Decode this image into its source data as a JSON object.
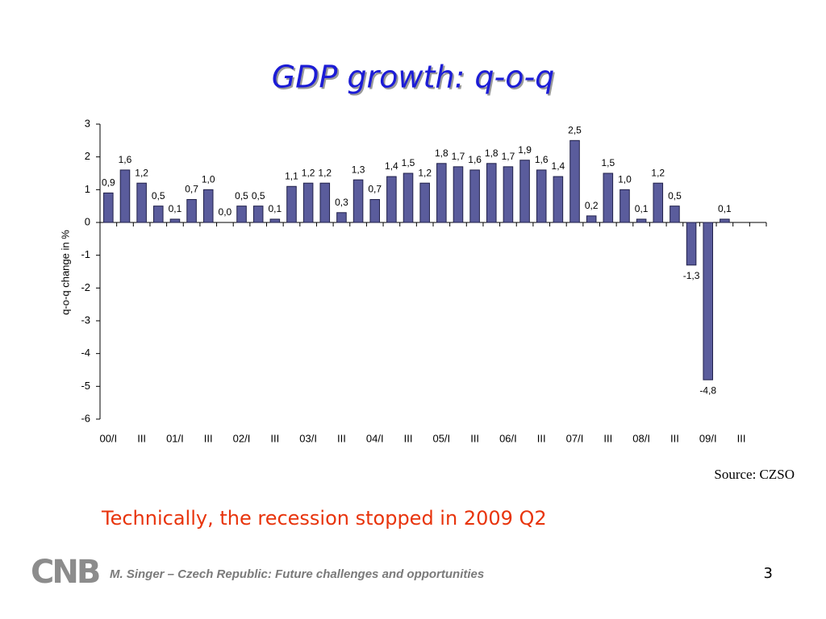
{
  "chart_data": {
    "type": "bar",
    "title": "GDP growth: q-o-q",
    "y_label": "q-o-q change in %",
    "categories": [
      "00/I",
      null,
      "III",
      null,
      "01/I",
      null,
      "III",
      null,
      "02/I",
      null,
      "III",
      null,
      "03/I",
      null,
      "III",
      null,
      "04/I",
      null,
      "III",
      null,
      "05/I",
      null,
      "III",
      null,
      "06/I",
      null,
      "III",
      null,
      "07/I",
      null,
      "III",
      null,
      "08/I",
      null,
      "III",
      null,
      "09/I",
      null,
      "III",
      null
    ],
    "values": [
      0.9,
      1.6,
      1.2,
      0.5,
      0.1,
      0.7,
      1.0,
      0.0,
      0.5,
      0.5,
      0.1,
      1.1,
      1.2,
      1.2,
      0.3,
      1.3,
      0.7,
      1.4,
      1.5,
      1.2,
      1.8,
      1.7,
      1.6,
      1.8,
      1.7,
      1.9,
      1.6,
      1.4,
      2.5,
      0.2,
      1.5,
      1.0,
      0.1,
      1.2,
      0.5,
      -1.3,
      -4.8,
      0.1,
      null,
      null
    ],
    "value_labels": [
      "0,9",
      "1,6",
      "1,2",
      "0,5",
      "0,1",
      "0,7",
      "1,0",
      "0,0",
      "0,5",
      "0,5",
      "0,1",
      "1,1",
      "1,2",
      "1,2",
      "0,3",
      "1,3",
      "0,7",
      "1,4",
      "1,5",
      "1,2",
      "1,8",
      "1,7",
      "1,6",
      "1,8",
      "1,7",
      "1,9",
      "1,6",
      "1,4",
      "2,5",
      "0,2",
      "1,5",
      "1,0",
      "0,1",
      "1,2",
      "0,5",
      "-1,3",
      "-4,8",
      "0,1",
      null,
      null
    ],
    "color": "#5a5c9c",
    "ylim": [
      -6,
      3
    ],
    "yticks": [
      -6,
      -5,
      -4,
      -3,
      -2,
      -1,
      0,
      1,
      2,
      3
    ],
    "source": "Source: CZSO"
  },
  "note": "Technically, the recession stopped in 2009 Q2",
  "footer": {
    "logo": "CNB",
    "text": "M. Singer – Czech Republic: Future challenges and opportunities",
    "page": "3"
  }
}
